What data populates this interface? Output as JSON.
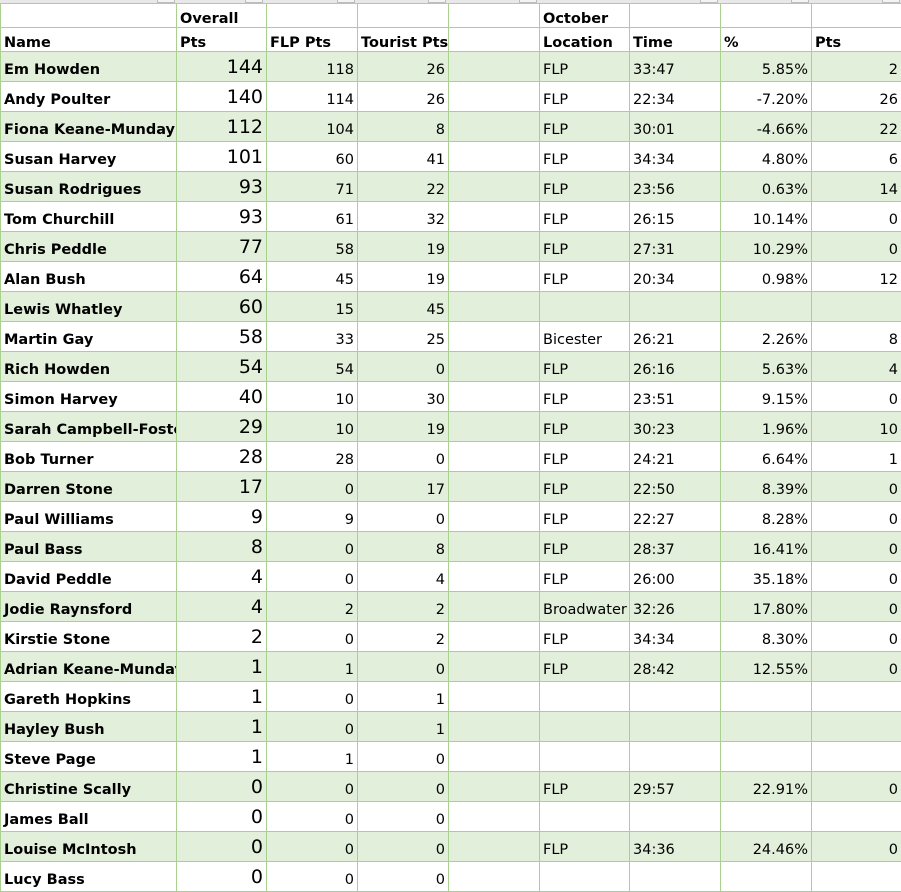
{
  "header": {
    "row1": [
      "",
      "Overall",
      "",
      "",
      "",
      "October",
      "",
      "",
      ""
    ],
    "row2": [
      "Name",
      "Pts",
      "FLP Pts",
      "Tourist Pts",
      "",
      "Location",
      "Time",
      "%",
      "Pts"
    ]
  },
  "rows": [
    {
      "name": "Em Howden",
      "overall": "144",
      "flp": "118",
      "tourist": "26",
      "location": "FLP",
      "time": "33:47",
      "pct": "5.85%",
      "pts": "2"
    },
    {
      "name": "Andy Poulter",
      "overall": "140",
      "flp": "114",
      "tourist": "26",
      "location": "FLP",
      "time": "22:34",
      "pct": "-7.20%",
      "pts": "26"
    },
    {
      "name": "Fiona Keane-Munday",
      "overall": "112",
      "flp": "104",
      "tourist": "8",
      "location": "FLP",
      "time": "30:01",
      "pct": "-4.66%",
      "pts": "22"
    },
    {
      "name": "Susan Harvey",
      "overall": "101",
      "flp": "60",
      "tourist": "41",
      "location": "FLP",
      "time": "34:34",
      "pct": "4.80%",
      "pts": "6"
    },
    {
      "name": "Susan Rodrigues",
      "overall": "93",
      "flp": "71",
      "tourist": "22",
      "location": "FLP",
      "time": "23:56",
      "pct": "0.63%",
      "pts": "14"
    },
    {
      "name": "Tom Churchill",
      "overall": "93",
      "flp": "61",
      "tourist": "32",
      "location": "FLP",
      "time": "26:15",
      "pct": "10.14%",
      "pts": "0"
    },
    {
      "name": "Chris Peddle",
      "overall": "77",
      "flp": "58",
      "tourist": "19",
      "location": "FLP",
      "time": "27:31",
      "pct": "10.29%",
      "pts": "0"
    },
    {
      "name": "Alan Bush",
      "overall": "64",
      "flp": "45",
      "tourist": "19",
      "location": "FLP",
      "time": "20:34",
      "pct": "0.98%",
      "pts": "12"
    },
    {
      "name": "Lewis Whatley",
      "overall": "60",
      "flp": "15",
      "tourist": "45",
      "location": "",
      "time": "",
      "pct": "",
      "pts": ""
    },
    {
      "name": "Martin Gay",
      "overall": "58",
      "flp": "33",
      "tourist": "25",
      "location": "Bicester",
      "time": "26:21",
      "pct": "2.26%",
      "pts": "8"
    },
    {
      "name": "Rich Howden",
      "overall": "54",
      "flp": "54",
      "tourist": "0",
      "location": "FLP",
      "time": "26:16",
      "pct": "5.63%",
      "pts": "4"
    },
    {
      "name": "Simon Harvey",
      "overall": "40",
      "flp": "10",
      "tourist": "30",
      "location": "FLP",
      "time": "23:51",
      "pct": "9.15%",
      "pts": "0"
    },
    {
      "name": "Sarah Campbell-Foster",
      "overall": "29",
      "flp": "10",
      "tourist": "19",
      "location": "FLP",
      "time": "30:23",
      "pct": "1.96%",
      "pts": "10"
    },
    {
      "name": "Bob Turner",
      "overall": "28",
      "flp": "28",
      "tourist": "0",
      "location": "FLP",
      "time": "24:21",
      "pct": "6.64%",
      "pts": "1"
    },
    {
      "name": "Darren Stone",
      "overall": "17",
      "flp": "0",
      "tourist": "17",
      "location": "FLP",
      "time": "22:50",
      "pct": "8.39%",
      "pts": "0"
    },
    {
      "name": "Paul Williams",
      "overall": "9",
      "flp": "9",
      "tourist": "0",
      "location": "FLP",
      "time": "22:27",
      "pct": "8.28%",
      "pts": "0"
    },
    {
      "name": "Paul Bass",
      "overall": "8",
      "flp": "0",
      "tourist": "8",
      "location": "FLP",
      "time": "28:37",
      "pct": "16.41%",
      "pts": "0"
    },
    {
      "name": "David Peddle",
      "overall": "4",
      "flp": "0",
      "tourist": "4",
      "location": "FLP",
      "time": "26:00",
      "pct": "35.18%",
      "pts": "0"
    },
    {
      "name": "Jodie Raynsford",
      "overall": "4",
      "flp": "2",
      "tourist": "2",
      "location": "Broadwater",
      "time": "32:26",
      "pct": "17.80%",
      "pts": "0"
    },
    {
      "name": "Kirstie Stone",
      "overall": "2",
      "flp": "0",
      "tourist": "2",
      "location": "FLP",
      "time": "34:34",
      "pct": "8.30%",
      "pts": "0"
    },
    {
      "name": "Adrian Keane-Munday",
      "overall": "1",
      "flp": "1",
      "tourist": "0",
      "location": "FLP",
      "time": "28:42",
      "pct": "12.55%",
      "pts": "0"
    },
    {
      "name": "Gareth Hopkins",
      "overall": "1",
      "flp": "0",
      "tourist": "1",
      "location": "",
      "time": "",
      "pct": "",
      "pts": ""
    },
    {
      "name": "Hayley Bush",
      "overall": "1",
      "flp": "0",
      "tourist": "1",
      "location": "",
      "time": "",
      "pct": "",
      "pts": ""
    },
    {
      "name": "Steve Page",
      "overall": "1",
      "flp": "1",
      "tourist": "0",
      "location": "",
      "time": "",
      "pct": "",
      "pts": ""
    },
    {
      "name": "Christine Scally",
      "overall": "0",
      "flp": "0",
      "tourist": "0",
      "location": "FLP",
      "time": "29:57",
      "pct": "22.91%",
      "pts": "0"
    },
    {
      "name": "James Ball",
      "overall": "0",
      "flp": "0",
      "tourist": "0",
      "location": "",
      "time": "",
      "pct": "",
      "pts": ""
    },
    {
      "name": "Louise McIntosh",
      "overall": "0",
      "flp": "0",
      "tourist": "0",
      "location": "FLP",
      "time": "34:36",
      "pct": "24.46%",
      "pts": "0"
    },
    {
      "name": "Lucy Bass",
      "overall": "0",
      "flp": "0",
      "tourist": "0",
      "location": "",
      "time": "",
      "pct": "",
      "pts": ""
    }
  ],
  "colors": {
    "band": "#e2efda",
    "grid": "#a9d08e",
    "accent": "#70ad47"
  }
}
